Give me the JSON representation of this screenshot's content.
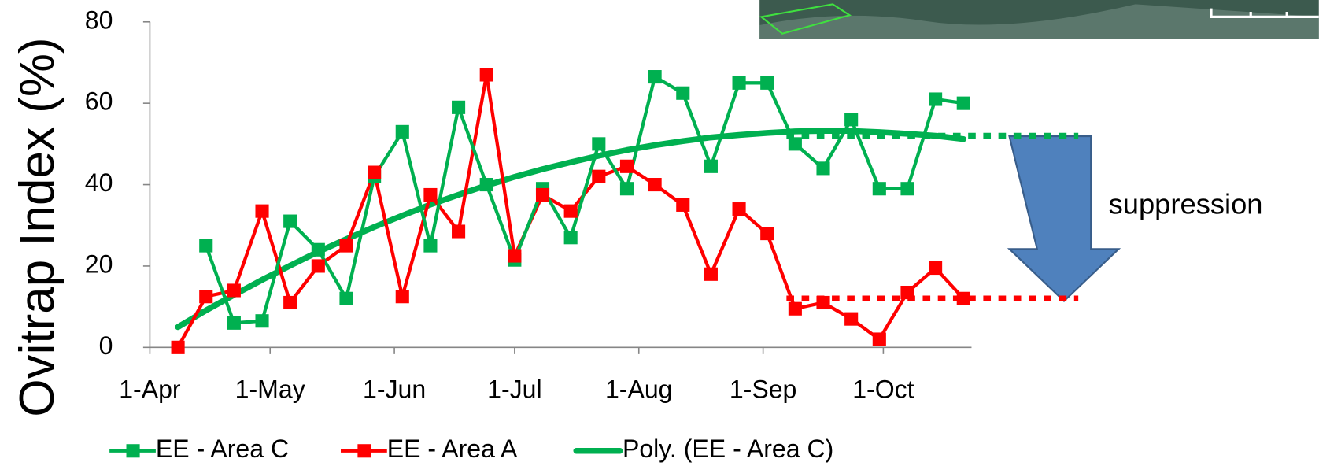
{
  "chart_data": {
    "type": "line",
    "y_label": "Ovitrap Index (%)",
    "annotation": "suppression",
    "x": [
      7,
      14,
      21,
      28,
      35,
      42,
      49,
      56,
      63,
      70,
      77,
      84,
      91,
      98,
      105,
      112,
      119,
      126,
      133,
      140,
      147,
      154,
      161,
      168,
      175,
      182,
      189,
      196,
      203
    ],
    "xlim": [
      0,
      205
    ],
    "xticks": [
      {
        "value": 0,
        "label": "1-Apr"
      },
      {
        "value": 30,
        "label": "1-May"
      },
      {
        "value": 61,
        "label": "1-Jun"
      },
      {
        "value": 91,
        "label": "1-Jul"
      },
      {
        "value": 122,
        "label": "1-Aug"
      },
      {
        "value": 153,
        "label": "1-Sep"
      },
      {
        "value": 183,
        "label": "1-Oct"
      }
    ],
    "ylim": [
      0,
      80
    ],
    "yticks": [
      0,
      20,
      40,
      60,
      80
    ],
    "series": [
      {
        "name": "EE - Area C",
        "color": "#00b050",
        "marker": "square",
        "values": [
          null,
          25,
          6,
          6.5,
          31,
          24,
          12,
          42,
          53,
          25,
          59,
          40,
          21.5,
          39,
          27,
          50,
          39,
          66.5,
          62.5,
          44.5,
          65,
          65,
          50,
          44,
          56,
          39,
          39,
          61,
          60
        ]
      },
      {
        "name": "EE - Area A",
        "color": "#ff0000",
        "marker": "square",
        "values": [
          0,
          12.5,
          14,
          33.5,
          11,
          20,
          25,
          43,
          12.5,
          37.5,
          28.5,
          67,
          22.5,
          37.5,
          33.5,
          42,
          44.5,
          40,
          35,
          18,
          34,
          28,
          9.5,
          11,
          7,
          2,
          13.5,
          19.5,
          12
        ]
      },
      {
        "name": "Poly. (EE - Area C)",
        "color": "#00b050",
        "marker": "none",
        "values": [
          5.0,
          9.1,
          12.9,
          16.6,
          20.1,
          23.5,
          26.6,
          29.6,
          32.4,
          35.1,
          37.5,
          39.8,
          41.9,
          43.8,
          45.5,
          47.1,
          48.5,
          49.7,
          50.7,
          51.6,
          52.2,
          52.7,
          53.1,
          53.2,
          53.2,
          52.9,
          52.5,
          52.0,
          51.2
        ]
      }
    ],
    "reference_lines": [
      {
        "value": 52,
        "color": "#00b050"
      },
      {
        "value": 12,
        "color": "#ff0000"
      }
    ]
  }
}
